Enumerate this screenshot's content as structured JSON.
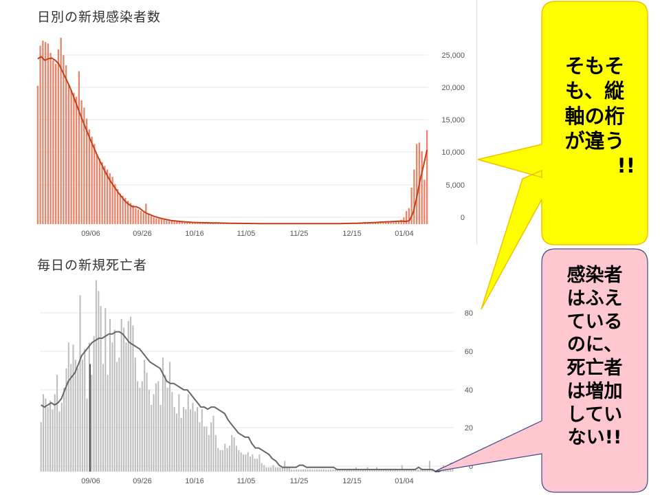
{
  "chart_data": [
    {
      "type": "bar",
      "title": "日別の新規感染者数",
      "x_tick_labels": [
        "09/06",
        "09/26",
        "10/16",
        "11/05",
        "11/25",
        "12/15",
        "01/04"
      ],
      "y_tick_labels": [
        "25,000",
        "20,000",
        "15,000",
        "10,000",
        "5,000",
        "0"
      ],
      "ylim": [
        0,
        27000
      ],
      "bar_color": "#e8846a",
      "line_color": "#c0401a",
      "grid": true,
      "values": [
        19000,
        24500,
        25200,
        25000,
        24800,
        23500,
        22500,
        22000,
        24000,
        25600,
        23200,
        21800,
        19200,
        18400,
        18000,
        17500,
        21000,
        17000,
        16000,
        14500,
        13000,
        12000,
        11000,
        9500,
        9000,
        8500,
        8000,
        7500,
        7000,
        6500,
        5500,
        4800,
        4200,
        3900,
        3600,
        3200,
        2900,
        2600,
        2200,
        2000,
        1800,
        1600,
        2800,
        1400,
        1100,
        900,
        800,
        700,
        650,
        600,
        500,
        450,
        420,
        400,
        380,
        350,
        330,
        310,
        300,
        280,
        260,
        240,
        220,
        200,
        190,
        180,
        170,
        160,
        150,
        140,
        130,
        120,
        115,
        110,
        105,
        100,
        100,
        95,
        95,
        90,
        90,
        85,
        85,
        80,
        80,
        80,
        80,
        80,
        80,
        80,
        80,
        80,
        80,
        80,
        80,
        80,
        80,
        80,
        80,
        80,
        80,
        80,
        80,
        80,
        80,
        80,
        80,
        80,
        80,
        80,
        80,
        80,
        80,
        80,
        80,
        80,
        80,
        80,
        80,
        80,
        80,
        80,
        85,
        90,
        95,
        100,
        110,
        120,
        130,
        140,
        150,
        160,
        170,
        180,
        200,
        220,
        240,
        260,
        280,
        300,
        400,
        600,
        900,
        1800,
        2200,
        5000,
        7500,
        11000,
        11200,
        10000,
        6100,
        12900
      ],
      "trend": [
        22700,
        23000,
        22500,
        22700,
        22800,
        22500,
        22000,
        21000,
        20000,
        19000,
        17800,
        16500,
        15200,
        14000,
        12800,
        11600,
        10500,
        9400,
        8400,
        7400,
        6500,
        5700,
        5000,
        4300,
        3700,
        3100,
        2700,
        2400,
        2400,
        2200,
        1800,
        1500,
        1300,
        1100,
        950,
        800,
        700,
        600,
        500,
        450,
        400,
        350,
        300,
        280,
        250,
        230,
        210,
        200,
        190,
        180,
        170,
        160,
        150,
        140,
        130,
        120,
        110,
        100,
        100,
        90,
        90,
        85,
        85,
        80,
        80,
        80,
        80,
        80,
        80,
        80,
        80,
        80,
        80,
        80,
        80,
        80,
        80,
        80,
        80,
        80,
        80,
        80,
        80,
        80,
        80,
        80,
        80,
        85,
        90,
        100,
        110,
        120,
        140,
        160,
        180,
        200,
        220,
        250,
        280,
        300,
        320,
        350,
        380,
        400,
        400,
        350,
        500,
        1500,
        3500,
        6000,
        8000,
        10200
      ]
    },
    {
      "type": "bar",
      "title": "毎日の新規死亡者",
      "x_tick_labels": [
        "09/06",
        "09/26",
        "10/16",
        "11/05",
        "11/25",
        "12/15",
        "01/04"
      ],
      "y_tick_labels": [
        "80",
        "60",
        "40",
        "20",
        "0"
      ],
      "ylim": [
        0,
        85
      ],
      "bar_color": "#bdbdbd",
      "line_color": "#666666",
      "grid": true,
      "values": [
        23,
        36,
        34,
        30,
        33,
        29,
        36,
        45,
        28,
        32,
        39,
        48,
        60,
        50,
        59,
        52,
        48,
        82,
        52,
        57,
        34,
        60,
        45,
        63,
        89,
        84,
        77,
        50,
        76,
        45,
        71,
        60,
        66,
        51,
        53,
        71,
        67,
        60,
        70,
        72,
        68,
        53,
        42,
        39,
        42,
        52,
        46,
        38,
        31,
        36,
        41,
        42,
        31,
        53,
        45,
        39,
        51,
        37,
        30,
        27,
        36,
        25,
        30,
        29,
        36,
        29,
        32,
        28,
        30,
        23,
        29,
        21,
        21,
        17,
        23,
        26,
        17,
        11,
        10,
        10,
        13,
        11,
        12,
        17,
        16,
        12,
        10,
        9,
        8,
        8,
        9,
        7,
        8,
        6,
        6,
        8,
        4,
        3,
        2,
        2,
        2,
        3,
        2,
        2,
        2,
        2,
        5,
        2,
        2,
        1,
        1,
        1,
        1,
        1,
        1,
        1,
        1,
        1,
        1,
        1,
        1,
        1,
        1,
        1,
        1,
        1,
        1,
        1,
        1,
        1,
        1,
        1,
        1,
        1,
        1,
        1,
        1,
        2,
        1,
        1,
        1,
        1,
        2,
        1,
        1,
        1,
        2,
        1,
        1,
        1,
        1,
        1,
        1,
        1,
        1,
        1,
        1,
        3,
        1,
        1,
        1,
        1,
        1,
        1,
        1,
        1,
        1,
        1,
        1,
        5,
        1,
        1,
        0,
        1,
        2,
        3,
        2,
        2,
        4,
        4
      ],
      "trend": [
        31,
        30,
        31,
        32,
        31,
        32,
        34,
        38,
        42,
        44,
        46,
        50,
        54,
        56,
        58,
        60,
        61,
        62,
        62,
        63,
        64,
        64,
        65,
        65,
        64,
        62,
        60,
        59,
        58,
        57,
        55,
        53,
        51,
        50,
        49,
        48,
        45,
        42,
        41,
        41,
        40,
        39,
        38,
        38,
        36,
        34,
        32,
        30,
        30,
        29,
        30,
        30,
        29,
        28,
        27,
        24,
        22,
        20,
        18,
        17,
        16,
        16,
        13,
        11,
        11,
        10,
        9,
        8,
        6,
        5,
        3,
        2,
        2,
        2,
        2,
        2,
        3,
        3,
        2,
        2,
        2,
        2,
        2,
        2,
        2,
        2,
        2,
        1,
        1,
        1,
        1,
        1,
        1,
        1,
        1,
        1,
        1,
        1,
        1,
        1,
        1,
        1,
        1,
        1,
        1,
        1,
        1,
        1,
        1,
        1,
        1,
        2,
        1,
        1,
        1,
        1,
        0,
        0,
        1,
        2,
        3,
        4
      ]
    }
  ],
  "annotations": {
    "yellow": {
      "lines": [
        "そもそ",
        "も、縦",
        "軸の桁",
        "が違う",
        "!!"
      ],
      "fill": "#ffff00",
      "stroke": "#f0c000"
    },
    "pink": {
      "lines": [
        "感染者",
        "はふえ",
        "ている",
        "のに、",
        "死亡者",
        "は増加",
        "してい",
        "ない!!"
      ],
      "fill": "#ffc8d0",
      "stroke": "#3a4a8a"
    }
  }
}
